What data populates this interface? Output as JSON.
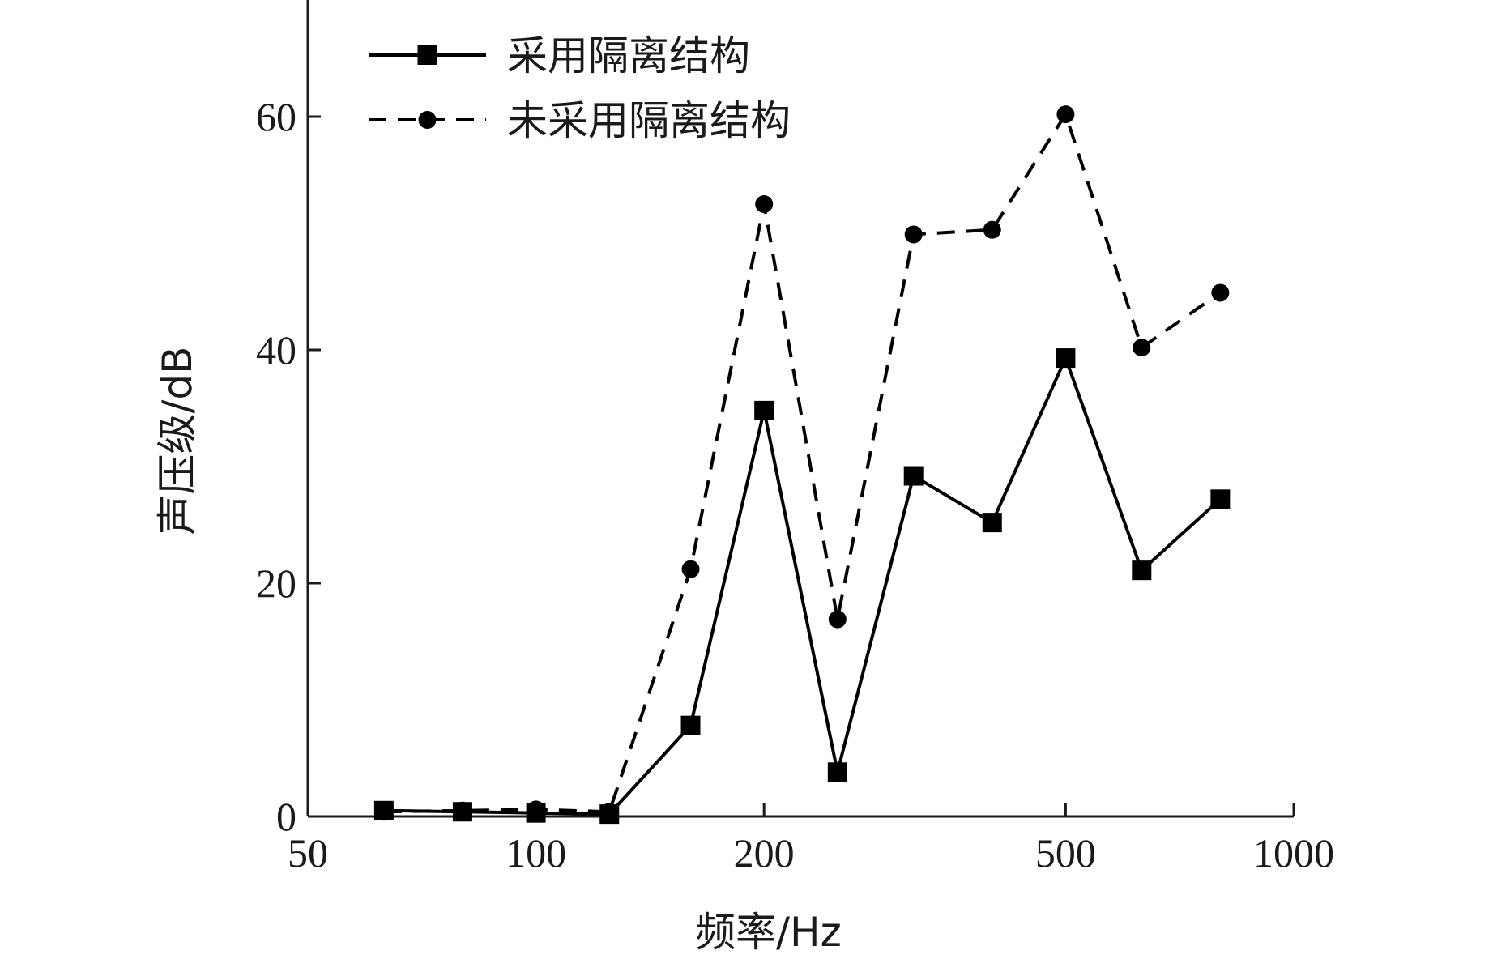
{
  "chart_data": {
    "type": "line",
    "xscale": "log",
    "xlim": [
      50,
      1000
    ],
    "ylim": [
      0,
      70
    ],
    "xticks": [
      50,
      100,
      200,
      500,
      1000
    ],
    "yticks": [
      0,
      20,
      40,
      60
    ],
    "xlabel": "频率/Hz",
    "ylabel": "声压级/dB",
    "legend_position": "top-left",
    "grid": false,
    "series": [
      {
        "name": "采用隔离结构",
        "style": "solid",
        "marker": "square",
        "color": "#000000",
        "x": [
          63,
          80,
          100,
          125,
          160,
          200,
          250,
          315,
          400,
          500,
          630,
          800
        ],
        "y": [
          0.5,
          0.4,
          0.3,
          0.2,
          7.8,
          34.8,
          3.8,
          29.2,
          25.2,
          39.3,
          21.1,
          27.2
        ]
      },
      {
        "name": "未采用隔离结构",
        "style": "dashed",
        "marker": "circle",
        "color": "#000000",
        "x": [
          63,
          80,
          100,
          125,
          160,
          200,
          250,
          315,
          400,
          500,
          630,
          800
        ],
        "y": [
          0.4,
          0.5,
          0.6,
          0.4,
          21.2,
          52.5,
          16.9,
          49.9,
          50.3,
          60.2,
          40.2,
          44.9
        ]
      }
    ]
  }
}
